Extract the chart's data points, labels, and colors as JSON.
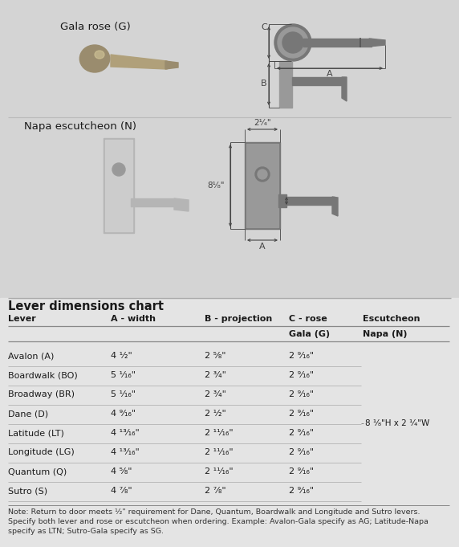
{
  "bg_color": "#d4d4d4",
  "table_bg": "#e8e8e8",
  "text_color": "#1a1a1a",
  "dim_color": "#444444",
  "shape_dark": "#777777",
  "shape_mid": "#999999",
  "shape_light": "#bbbbbb",
  "bronze_dark": "#9a8c6e",
  "bronze_mid": "#b0a07a",
  "bronze_light": "#c8b88a",
  "silver_dark": "#9a9a9a",
  "silver_mid": "#b5b5b5",
  "silver_light": "#cccccc",
  "gala_label": "Gala rose (G)",
  "napa_label": "Napa escutcheon (N)",
  "table_title": "Lever dimensions chart",
  "col_headers": [
    "Lever",
    "A - width",
    "B - projection",
    "C - rose",
    "Escutcheon"
  ],
  "sub_col3": "Gala (G)",
  "sub_col4": "Napa (N)",
  "rows": [
    [
      "Avalon (A)",
      "4 ¹⁄₂\"",
      "2 ⁵⁄₈\"",
      "2 ⁹⁄₁₆\""
    ],
    [
      "Boardwalk (BO)",
      "5 ¹⁄₁₆\"",
      "2 ³⁄₄\"",
      "2 ⁹⁄₁₆\""
    ],
    [
      "Broadway (BR)",
      "5 ¹⁄₁₆\"",
      "2 ³⁄₄\"",
      "2 ⁹⁄₁₆\""
    ],
    [
      "Dane (D)",
      "4 ⁹⁄₁₆\"",
      "2 ¹⁄₂\"",
      "2 ⁹⁄₁₆\""
    ],
    [
      "Latitude (LT)",
      "4 ¹³⁄₁₆\"",
      "2 ¹¹⁄₁₆\"",
      "2 ⁹⁄₁₆\""
    ],
    [
      "Longitude (LG)",
      "4 ¹³⁄₁₆\"",
      "2 ¹¹⁄₁₆\"",
      "2 ⁹⁄₁₆\""
    ],
    [
      "Quantum (Q)",
      "4 ⁵⁄₈\"",
      "2 ¹¹⁄₁₆\"",
      "2 ⁹⁄₁₆\""
    ],
    [
      "Sutro (S)",
      "4 ⁷⁄₈\"",
      "2 ⁷⁄₈\"",
      "2 ⁹⁄₁₆\""
    ]
  ],
  "escutcheon_note": "8 ¹⁄₈\"H x 2 ¹⁄₄\"W",
  "note_line1": "Note: Return to door meets ¹⁄₂\" requirement for Dane, Quantum, Boardwalk and Longitude and Sutro levers.",
  "note_line2": "        Specify both lever and rose or escutcheon when ordering. Example: Avalon-Gala specify as AG; Latitude-Napa",
  "note_line3": "        specify as LTN; Sutro-Gala specify as SG.",
  "napa_width_label": "2¹⁄₄\"",
  "napa_height_label": "8¹⁄₈\""
}
